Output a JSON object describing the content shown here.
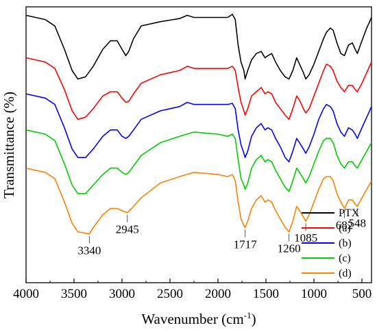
{
  "chart_data": {
    "type": "line",
    "xlabel": "Wavenumber (cm",
    "xlabel_sup": "-1",
    "xlabel_suffix": ")",
    "ylabel": "Transmittance (%)",
    "xlim": [
      4000,
      400
    ],
    "x_reversed": true,
    "xticks": [
      4000,
      3500,
      3000,
      2500,
      2000,
      1500,
      1000,
      500
    ],
    "y_ticks_shown": false,
    "grid": false,
    "legend": {
      "placement": "bottom-right"
    },
    "series": [
      {
        "name": "PTX",
        "color": "#000000",
        "points": [
          [
            4000,
            96
          ],
          [
            3800,
            94
          ],
          [
            3700,
            91
          ],
          [
            3600,
            80
          ],
          [
            3520,
            70
          ],
          [
            3460,
            66
          ],
          [
            3380,
            67
          ],
          [
            3300,
            72
          ],
          [
            3200,
            80
          ],
          [
            3120,
            84
          ],
          [
            3050,
            84
          ],
          [
            3000,
            80
          ],
          [
            2960,
            77
          ],
          [
            2930,
            79
          ],
          [
            2880,
            85
          ],
          [
            2800,
            91
          ],
          [
            2600,
            93
          ],
          [
            2400,
            94.5
          ],
          [
            2320,
            96
          ],
          [
            2250,
            95
          ],
          [
            2000,
            95
          ],
          [
            1900,
            95
          ],
          [
            1850,
            96.5
          ],
          [
            1820,
            94
          ],
          [
            1790,
            82
          ],
          [
            1760,
            74
          ],
          [
            1730,
            70
          ],
          [
            1717,
            66
          ],
          [
            1690,
            70
          ],
          [
            1650,
            75
          ],
          [
            1600,
            78
          ],
          [
            1550,
            79
          ],
          [
            1510,
            76
          ],
          [
            1480,
            77
          ],
          [
            1440,
            78
          ],
          [
            1400,
            74
          ],
          [
            1350,
            70
          ],
          [
            1300,
            67
          ],
          [
            1260,
            66
          ],
          [
            1220,
            70
          ],
          [
            1180,
            76
          ],
          [
            1150,
            73
          ],
          [
            1110,
            69
          ],
          [
            1085,
            66
          ],
          [
            1050,
            68
          ],
          [
            1000,
            73
          ],
          [
            950,
            79
          ],
          [
            900,
            85
          ],
          [
            870,
            88
          ],
          [
            830,
            90
          ],
          [
            800,
            89
          ],
          [
            760,
            83
          ],
          [
            720,
            78
          ],
          [
            682,
            77
          ],
          [
            640,
            82
          ],
          [
            600,
            83
          ],
          [
            570,
            80
          ],
          [
            548,
            78
          ],
          [
            500,
            84
          ],
          [
            450,
            90
          ],
          [
            400,
            95
          ]
        ]
      },
      {
        "name": "(a)",
        "color": "#ff0000",
        "points": [
          [
            4000,
            76
          ],
          [
            3800,
            74
          ],
          [
            3700,
            71
          ],
          [
            3600,
            61
          ],
          [
            3520,
            51
          ],
          [
            3460,
            47
          ],
          [
            3380,
            48
          ],
          [
            3300,
            52
          ],
          [
            3200,
            58
          ],
          [
            3120,
            60
          ],
          [
            3050,
            60
          ],
          [
            3000,
            57
          ],
          [
            2960,
            55
          ],
          [
            2930,
            55.5
          ],
          [
            2880,
            59
          ],
          [
            2800,
            64
          ],
          [
            2600,
            68
          ],
          [
            2400,
            70
          ],
          [
            2320,
            72
          ],
          [
            2250,
            71
          ],
          [
            2000,
            71
          ],
          [
            1900,
            71
          ],
          [
            1850,
            72
          ],
          [
            1820,
            70
          ],
          [
            1790,
            62
          ],
          [
            1760,
            55
          ],
          [
            1730,
            51
          ],
          [
            1717,
            49
          ],
          [
            1690,
            52
          ],
          [
            1650,
            58
          ],
          [
            1600,
            60
          ],
          [
            1550,
            62
          ],
          [
            1510,
            59
          ],
          [
            1480,
            60
          ],
          [
            1440,
            59
          ],
          [
            1400,
            55
          ],
          [
            1350,
            52
          ],
          [
            1300,
            49
          ],
          [
            1260,
            47
          ],
          [
            1220,
            52
          ],
          [
            1180,
            58
          ],
          [
            1150,
            56
          ],
          [
            1110,
            52
          ],
          [
            1085,
            50
          ],
          [
            1050,
            52
          ],
          [
            1000,
            58
          ],
          [
            950,
            64
          ],
          [
            900,
            70
          ],
          [
            870,
            73
          ],
          [
            830,
            72
          ],
          [
            800,
            70
          ],
          [
            760,
            65
          ],
          [
            720,
            62
          ],
          [
            682,
            60
          ],
          [
            640,
            63
          ],
          [
            600,
            63
          ],
          [
            570,
            61
          ],
          [
            548,
            60
          ],
          [
            500,
            64
          ],
          [
            450,
            69
          ],
          [
            400,
            74
          ]
        ]
      },
      {
        "name": "(b)",
        "color": "#0000ff",
        "points": [
          [
            4000,
            59
          ],
          [
            3800,
            57
          ],
          [
            3700,
            54
          ],
          [
            3600,
            43
          ],
          [
            3520,
            33
          ],
          [
            3460,
            29
          ],
          [
            3380,
            29
          ],
          [
            3300,
            33
          ],
          [
            3200,
            39
          ],
          [
            3120,
            42
          ],
          [
            3050,
            42
          ],
          [
            3000,
            39
          ],
          [
            2960,
            38
          ],
          [
            2930,
            39
          ],
          [
            2880,
            42
          ],
          [
            2800,
            47
          ],
          [
            2600,
            51
          ],
          [
            2400,
            53
          ],
          [
            2320,
            55
          ],
          [
            2250,
            54
          ],
          [
            2000,
            54
          ],
          [
            1900,
            54
          ],
          [
            1850,
            54.5
          ],
          [
            1820,
            52
          ],
          [
            1790,
            42
          ],
          [
            1760,
            35
          ],
          [
            1730,
            31
          ],
          [
            1717,
            29
          ],
          [
            1690,
            32
          ],
          [
            1650,
            39
          ],
          [
            1600,
            43
          ],
          [
            1550,
            45
          ],
          [
            1510,
            42
          ],
          [
            1480,
            43
          ],
          [
            1440,
            42
          ],
          [
            1400,
            38
          ],
          [
            1350,
            34
          ],
          [
            1300,
            29
          ],
          [
            1260,
            27
          ],
          [
            1220,
            32
          ],
          [
            1180,
            38
          ],
          [
            1150,
            36
          ],
          [
            1110,
            33
          ],
          [
            1085,
            31
          ],
          [
            1050,
            34
          ],
          [
            1000,
            40
          ],
          [
            950,
            47
          ],
          [
            900,
            52
          ],
          [
            870,
            54
          ],
          [
            830,
            53
          ],
          [
            800,
            51
          ],
          [
            760,
            45
          ],
          [
            720,
            41
          ],
          [
            682,
            39
          ],
          [
            640,
            43
          ],
          [
            600,
            42
          ],
          [
            570,
            40
          ],
          [
            548,
            38
          ],
          [
            500,
            43
          ],
          [
            450,
            48
          ],
          [
            400,
            53
          ]
        ]
      },
      {
        "name": "(c)",
        "color": "#00cc00",
        "points": [
          [
            4000,
            42
          ],
          [
            3800,
            40
          ],
          [
            3700,
            37
          ],
          [
            3600,
            26
          ],
          [
            3520,
            16
          ],
          [
            3460,
            12
          ],
          [
            3380,
            12
          ],
          [
            3300,
            16
          ],
          [
            3200,
            21
          ],
          [
            3120,
            24
          ],
          [
            3050,
            24
          ],
          [
            3000,
            22
          ],
          [
            2960,
            21
          ],
          [
            2930,
            22
          ],
          [
            2880,
            25
          ],
          [
            2800,
            30
          ],
          [
            2600,
            36
          ],
          [
            2400,
            39
          ],
          [
            2250,
            41
          ],
          [
            2000,
            40
          ],
          [
            1900,
            39
          ],
          [
            1850,
            40
          ],
          [
            1820,
            38
          ],
          [
            1790,
            28
          ],
          [
            1760,
            19
          ],
          [
            1730,
            16
          ],
          [
            1717,
            14
          ],
          [
            1690,
            17
          ],
          [
            1650,
            24
          ],
          [
            1600,
            28
          ],
          [
            1550,
            30
          ],
          [
            1510,
            27
          ],
          [
            1480,
            28
          ],
          [
            1440,
            27
          ],
          [
            1400,
            23
          ],
          [
            1350,
            19
          ],
          [
            1300,
            15
          ],
          [
            1260,
            13
          ],
          [
            1220,
            18
          ],
          [
            1180,
            24
          ],
          [
            1150,
            22
          ],
          [
            1110,
            19
          ],
          [
            1085,
            17
          ],
          [
            1050,
            20
          ],
          [
            1000,
            26
          ],
          [
            950,
            32
          ],
          [
            900,
            37
          ],
          [
            870,
            38
          ],
          [
            830,
            38
          ],
          [
            800,
            36
          ],
          [
            760,
            30
          ],
          [
            720,
            26
          ],
          [
            682,
            24
          ],
          [
            640,
            27
          ],
          [
            600,
            27
          ],
          [
            570,
            25
          ],
          [
            548,
            24
          ],
          [
            500,
            28
          ],
          [
            450,
            32
          ],
          [
            400,
            36
          ]
        ]
      },
      {
        "name": "(d)",
        "color": "#ff8000",
        "points": [
          [
            4000,
            24
          ],
          [
            3800,
            22
          ],
          [
            3700,
            19
          ],
          [
            3600,
            8
          ],
          [
            3520,
            -2
          ],
          [
            3460,
            -6
          ],
          [
            3340,
            -7
          ],
          [
            3300,
            -4
          ],
          [
            3200,
            2
          ],
          [
            3120,
            5
          ],
          [
            3050,
            5
          ],
          [
            3000,
            4
          ],
          [
            2945,
            3
          ],
          [
            2900,
            5
          ],
          [
            2800,
            10
          ],
          [
            2600,
            17
          ],
          [
            2400,
            20
          ],
          [
            2250,
            22
          ],
          [
            2000,
            21
          ],
          [
            1900,
            20
          ],
          [
            1850,
            21
          ],
          [
            1820,
            18
          ],
          [
            1790,
            8
          ],
          [
            1760,
            0
          ],
          [
            1730,
            -3
          ],
          [
            1717,
            -4
          ],
          [
            1690,
            -1
          ],
          [
            1650,
            5
          ],
          [
            1600,
            9
          ],
          [
            1550,
            11
          ],
          [
            1510,
            8
          ],
          [
            1480,
            9
          ],
          [
            1440,
            8
          ],
          [
            1400,
            4
          ],
          [
            1350,
            0
          ],
          [
            1300,
            -4
          ],
          [
            1260,
            -6
          ],
          [
            1220,
            -1
          ],
          [
            1180,
            6
          ],
          [
            1150,
            4
          ],
          [
            1110,
            1
          ],
          [
            1085,
            -1
          ],
          [
            1050,
            2
          ],
          [
            1000,
            8
          ],
          [
            950,
            14
          ],
          [
            900,
            19
          ],
          [
            870,
            20
          ],
          [
            830,
            20
          ],
          [
            800,
            18
          ],
          [
            760,
            12
          ],
          [
            720,
            8
          ],
          [
            682,
            5
          ],
          [
            640,
            9
          ],
          [
            600,
            9
          ],
          [
            570,
            7
          ],
          [
            548,
            6
          ],
          [
            500,
            10
          ],
          [
            450,
            14
          ],
          [
            400,
            18
          ]
        ]
      }
    ],
    "annotations": [
      {
        "label": "3340",
        "x": 3340,
        "y": -7
      },
      {
        "label": "2945",
        "x": 2945,
        "y": 3
      },
      {
        "label": "1717",
        "x": 1717,
        "y": -4
      },
      {
        "label": "1260",
        "x": 1260,
        "y": -6
      },
      {
        "label": "1085",
        "x": 1085,
        "y": -1
      },
      {
        "label": "682",
        "x": 682,
        "y": 5
      },
      {
        "label": "548",
        "x": 548,
        "y": 6
      }
    ]
  }
}
